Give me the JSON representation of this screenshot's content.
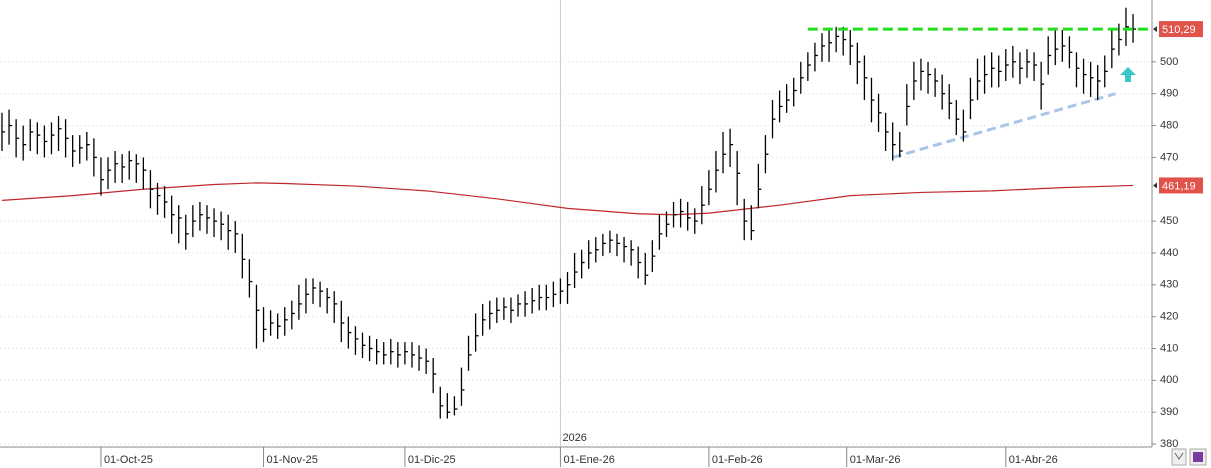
{
  "chart_data": {
    "type": "ohlc",
    "color": "#000000",
    "close": [
      478,
      480,
      476,
      474,
      478,
      477,
      475,
      477,
      479,
      476,
      472,
      473,
      474,
      470,
      463,
      466,
      468,
      467,
      469,
      468,
      466,
      460,
      458,
      456,
      452,
      451,
      446,
      450,
      452,
      451,
      450,
      449,
      447,
      446,
      438,
      431,
      422,
      416,
      418,
      417,
      419,
      421,
      424,
      427,
      429,
      428,
      426,
      424,
      418,
      415,
      413,
      411,
      410,
      409,
      408,
      409,
      408,
      409,
      408,
      407,
      406,
      402,
      392,
      390,
      391,
      397,
      408,
      414,
      419,
      421,
      422,
      423,
      422,
      424,
      424,
      425,
      426,
      426,
      427,
      428,
      430,
      434,
      437,
      440,
      441,
      443,
      444,
      443,
      442,
      441,
      437,
      433,
      439,
      446,
      449,
      452,
      453,
      451,
      450,
      455,
      460,
      466,
      471,
      474,
      465,
      450,
      447,
      460,
      471,
      482,
      486,
      488,
      491,
      495,
      499,
      502,
      505,
      506,
      508,
      507,
      505,
      500,
      495,
      488,
      484,
      478,
      474,
      472,
      486,
      494,
      497,
      496,
      494,
      490,
      487,
      482,
      478,
      488,
      494,
      496,
      498,
      497,
      499,
      500,
      498,
      500,
      499,
      493,
      502,
      504,
      505,
      503,
      498,
      496,
      495,
      494,
      497,
      504,
      507,
      511,
      510.29
    ],
    "high": [
      484,
      485,
      482,
      480,
      482,
      481,
      480,
      481,
      483,
      482,
      477,
      477,
      478,
      476,
      470,
      470,
      472,
      471,
      472,
      471,
      470,
      466,
      462,
      461,
      458,
      455,
      452,
      455,
      456,
      455,
      454,
      453,
      452,
      450,
      446,
      438,
      430,
      423,
      422,
      421,
      423,
      425,
      430,
      432,
      432,
      431,
      429,
      428,
      425,
      420,
      417,
      415,
      414,
      413,
      412,
      413,
      412,
      412,
      412,
      411,
      410,
      407,
      398,
      396,
      395,
      404,
      414,
      421,
      424,
      425,
      426,
      426,
      426,
      427,
      428,
      429,
      430,
      430,
      431,
      432,
      434,
      440,
      441,
      444,
      445,
      446,
      447,
      446,
      445,
      444,
      442,
      440,
      444,
      452,
      453,
      456,
      457,
      456,
      454,
      461,
      466,
      472,
      478,
      479,
      472,
      457,
      455,
      468,
      477,
      488,
      491,
      493,
      495,
      500,
      503,
      506,
      509,
      510,
      511,
      511,
      510,
      506,
      502,
      495,
      490,
      484,
      481,
      478,
      493,
      500,
      501,
      500,
      498,
      496,
      493,
      488,
      485,
      495,
      501,
      502,
      503,
      502,
      504,
      505,
      503,
      504,
      503,
      500,
      508,
      510,
      510,
      508,
      503,
      501,
      500,
      499,
      502,
      510,
      512,
      517,
      515
    ],
    "low": [
      472,
      474,
      470,
      469,
      472,
      471,
      470,
      471,
      472,
      470,
      467,
      468,
      469,
      464,
      458,
      460,
      462,
      462,
      463,
      462,
      460,
      454,
      452,
      451,
      446,
      443,
      441,
      445,
      447,
      446,
      445,
      444,
      441,
      440,
      432,
      426,
      410,
      412,
      414,
      413,
      414,
      416,
      419,
      421,
      424,
      423,
      421,
      418,
      412,
      410,
      408,
      407,
      406,
      405,
      405,
      405,
      404,
      405,
      404,
      403,
      402,
      396,
      388,
      388,
      389,
      392,
      403,
      409,
      414,
      416,
      418,
      419,
      418,
      420,
      420,
      421,
      422,
      422,
      423,
      424,
      424,
      429,
      432,
      435,
      437,
      439,
      440,
      439,
      437,
      436,
      432,
      430,
      434,
      441,
      445,
      448,
      448,
      447,
      446,
      449,
      455,
      459,
      465,
      467,
      455,
      444,
      444,
      454,
      465,
      476,
      481,
      484,
      486,
      490,
      494,
      497,
      500,
      500,
      503,
      502,
      499,
      493,
      488,
      481,
      478,
      472,
      469,
      470,
      480,
      488,
      491,
      490,
      489,
      485,
      482,
      477,
      475,
      482,
      488,
      490,
      492,
      492,
      494,
      495,
      493,
      495,
      494,
      485,
      496,
      499,
      500,
      498,
      492,
      490,
      489,
      488,
      492,
      498,
      502,
      505,
      506
    ],
    "moving_average": {
      "color": "#c0272d",
      "x": [
        0,
        10,
        20,
        30,
        36,
        40,
        50,
        60,
        70,
        80,
        90,
        95,
        100,
        110,
        120,
        130,
        140,
        150,
        160
      ],
      "values": [
        456.5,
        458,
        460,
        461.5,
        462,
        461.8,
        461,
        459.5,
        457,
        454,
        452.3,
        452,
        452.5,
        455,
        458,
        459,
        459.5,
        460.5,
        461.19
      ]
    },
    "resistance": {
      "color": "#22dd22",
      "x": [
        114,
        162.4
      ],
      "y": 510.29
    },
    "trendline": {
      "color": "#a9c6e8",
      "x": [
        126,
        157.5
      ],
      "y": [
        470,
        490
      ]
    },
    "price_labels": [
      {
        "value": 510.29,
        "label": "510,29"
      },
      {
        "value": 461.19,
        "label": "461,19"
      }
    ],
    "year_marker": {
      "x": 79,
      "label": "2026"
    },
    "xlim": [
      -0.28,
      162.4
    ],
    "xticks": [
      {
        "value": 14,
        "label": "01-Oct-25"
      },
      {
        "value": 37,
        "label": "01-Nov-25"
      },
      {
        "value": 57,
        "label": "01-Dic-25"
      },
      {
        "value": 79,
        "label": "01-Ene-26"
      },
      {
        "value": 100,
        "label": "01-Feb-26"
      },
      {
        "value": 119.5,
        "label": "01-Mar-26"
      },
      {
        "value": 142,
        "label": "01-Abr-26"
      }
    ],
    "ylim": [
      379.07,
      519.42
    ],
    "yticks": [
      380,
      390,
      400,
      410,
      420,
      430,
      440,
      450,
      470,
      480,
      490,
      500
    ],
    "grid": true
  }
}
